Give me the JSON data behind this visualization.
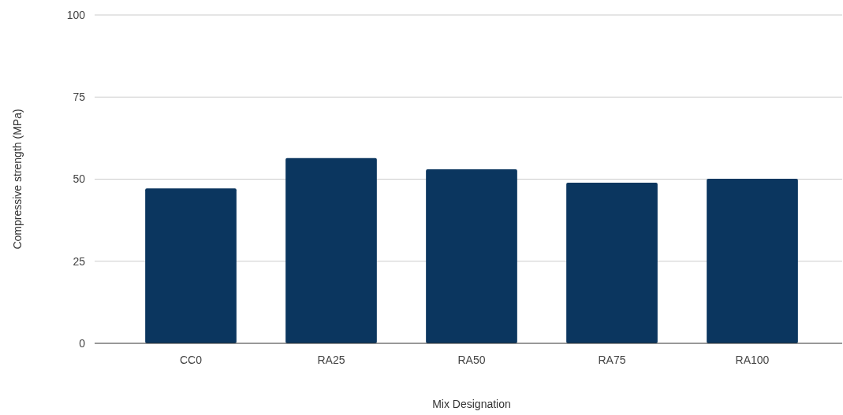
{
  "chart_data": {
    "type": "bar",
    "xlabel": "Mix Designation",
    "ylabel": "Compressive strength (MPa)",
    "categories": [
      "CC0",
      "RA25",
      "RA50",
      "RA75",
      "RA100"
    ],
    "values": [
      47.2,
      56.4,
      53,
      48.9,
      50.1
    ],
    "color": "#0b365f",
    "ylim": [
      0,
      100
    ],
    "yticks": [
      0,
      25,
      50,
      75,
      100
    ],
    "grid": "y"
  }
}
